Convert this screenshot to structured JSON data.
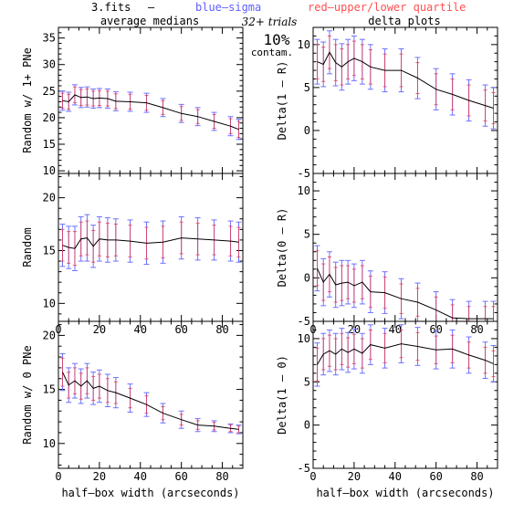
{
  "header": {
    "file_label": "3.fits",
    "dash": "–",
    "blue_label": "blue–sigma",
    "red_label": "red–upper/lower quartile",
    "blue_color": "#6060ff",
    "red_color": "#ff5050",
    "left_heading": "average medians",
    "trials": "32+ trials",
    "right_heading": "delta plots",
    "contam_pct": "10%",
    "contam_word": "contam."
  },
  "colors": {
    "line": "#000000",
    "sigma": "#7070ff",
    "quartile": "#e04060"
  },
  "chart_data": [
    {
      "type": "line",
      "ylabel": "Random w/ 1+ PNe",
      "xlim": [
        0,
        90
      ],
      "ylim": [
        9.5,
        37
      ],
      "xticks": [
        0,
        20,
        40,
        60,
        80
      ],
      "yticks": [
        10,
        15,
        20,
        25,
        30,
        35
      ],
      "show_xticklabels": false,
      "x": [
        2,
        5,
        8,
        11,
        14,
        17,
        20,
        24,
        28,
        35,
        43,
        51,
        60,
        68,
        76,
        84,
        88
      ],
      "y": [
        23.2,
        23.0,
        24.3,
        23.8,
        23.9,
        23.6,
        23.7,
        23.6,
        23.1,
        23.0,
        22.8,
        21.9,
        20.8,
        20.2,
        19.3,
        18.4,
        17.8
      ],
      "sigma": [
        1.8,
        1.8,
        1.9,
        1.9,
        1.9,
        1.8,
        1.8,
        1.8,
        1.8,
        1.8,
        1.8,
        1.7,
        1.7,
        1.7,
        1.7,
        1.8,
        1.9
      ],
      "quartile": [
        1.4,
        1.4,
        1.5,
        1.5,
        1.5,
        1.4,
        1.4,
        1.4,
        1.4,
        1.4,
        1.4,
        1.3,
        1.3,
        1.3,
        1.3,
        1.4,
        1.5
      ]
    },
    {
      "type": "line",
      "ylabel": "Random",
      "xlim": [
        0,
        90
      ],
      "ylim": [
        8.3,
        22.3
      ],
      "xticks": [
        0,
        20,
        40,
        60,
        80
      ],
      "yticks": [
        10,
        15,
        20
      ],
      "show_xticklabels": true,
      "x": [
        2,
        5,
        8,
        11,
        14,
        17,
        20,
        24,
        28,
        35,
        43,
        51,
        60,
        68,
        76,
        84,
        88
      ],
      "y": [
        15.5,
        15.3,
        15.2,
        16.1,
        16.2,
        15.4,
        16.1,
        16.0,
        16.0,
        15.9,
        15.7,
        15.8,
        16.2,
        16.1,
        16.0,
        15.9,
        15.8
      ],
      "sigma": [
        2.0,
        2.0,
        2.1,
        2.1,
        2.2,
        2.0,
        2.1,
        2.1,
        2.0,
        2.0,
        2.0,
        2.0,
        2.0,
        2.0,
        1.9,
        1.9,
        1.9
      ],
      "quartile": [
        1.5,
        1.5,
        1.6,
        1.6,
        1.6,
        1.5,
        1.6,
        1.6,
        1.5,
        1.5,
        1.5,
        1.5,
        1.5,
        1.5,
        1.4,
        1.4,
        1.4
      ]
    },
    {
      "type": "line",
      "ylabel": "Random w/ 0 PNe",
      "xlim": [
        0,
        90
      ],
      "ylim": [
        7.7,
        21.3
      ],
      "xticks": [
        0,
        20,
        40,
        60,
        80
      ],
      "yticks": [
        10,
        15,
        20
      ],
      "show_xticklabels": true,
      "xlabel": "half–box width (arcseconds)",
      "x": [
        2,
        5,
        8,
        11,
        14,
        17,
        20,
        24,
        28,
        35,
        43,
        51,
        60,
        68,
        76,
        84,
        88
      ],
      "y": [
        16.6,
        15.4,
        15.8,
        15.3,
        15.8,
        15.1,
        15.3,
        14.9,
        14.7,
        14.2,
        13.6,
        12.8,
        12.2,
        11.7,
        11.6,
        11.4,
        11.3
      ],
      "sigma": [
        1.7,
        1.6,
        1.6,
        1.6,
        1.6,
        1.5,
        1.5,
        1.5,
        1.4,
        1.3,
        1.1,
        0.9,
        0.8,
        0.6,
        0.5,
        0.4,
        0.4
      ],
      "quartile": [
        1.3,
        1.2,
        1.2,
        1.2,
        1.2,
        1.1,
        1.1,
        1.1,
        1.0,
        0.9,
        0.8,
        0.6,
        0.5,
        0.4,
        0.35,
        0.3,
        0.3
      ]
    },
    {
      "type": "line",
      "ylabel": "Delta(1 – R)",
      "xlim": [
        0,
        90
      ],
      "ylim": [
        -5,
        12
      ],
      "xticks": [
        0,
        20,
        40,
        60,
        80
      ],
      "yticks": [
        -5,
        0,
        5,
        10
      ],
      "show_xticklabels": false,
      "x": [
        2,
        5,
        8,
        11,
        14,
        17,
        20,
        24,
        28,
        35,
        43,
        51,
        60,
        68,
        76,
        84,
        88
      ],
      "y": [
        8.0,
        7.7,
        9.1,
        7.9,
        7.4,
        8.0,
        8.4,
        8.0,
        7.4,
        7.0,
        7.0,
        6.1,
        4.8,
        4.2,
        3.5,
        2.9,
        2.6
      ],
      "sigma": [
        2.6,
        2.6,
        2.5,
        2.7,
        2.7,
        2.6,
        2.6,
        2.6,
        2.6,
        2.5,
        2.5,
        2.4,
        2.4,
        2.4,
        2.4,
        2.4,
        2.4
      ],
      "quartile": [
        2.0,
        2.0,
        1.9,
        2.1,
        2.1,
        2.0,
        2.0,
        2.0,
        2.0,
        1.9,
        1.9,
        1.8,
        1.8,
        1.8,
        1.8,
        1.8,
        1.8
      ]
    },
    {
      "type": "line",
      "ylabel": "Delta(0 – R)",
      "xlim": [
        0,
        90
      ],
      "ylim": [
        -5,
        12
      ],
      "xticks": [
        0,
        20,
        40,
        60,
        80
      ],
      "yticks": [
        -5,
        0,
        5,
        10
      ],
      "show_xticklabels": true,
      "x": [
        2,
        5,
        8,
        11,
        14,
        17,
        20,
        24,
        28,
        35,
        43,
        51,
        60,
        68,
        76,
        84,
        88
      ],
      "y": [
        1.1,
        -0.5,
        0.4,
        -0.8,
        -0.6,
        -0.5,
        -0.9,
        -0.5,
        -1.6,
        -1.7,
        -2.4,
        -2.8,
        -3.7,
        -4.6,
        -4.7,
        -4.7,
        -4.7
      ],
      "sigma": [
        2.6,
        2.7,
        2.6,
        2.6,
        2.6,
        2.5,
        2.5,
        2.5,
        2.4,
        2.4,
        2.3,
        2.2,
        2.1,
        2.1,
        2.0,
        2.0,
        2.0
      ],
      "quartile": [
        2.0,
        2.1,
        2.0,
        2.0,
        2.0,
        1.9,
        1.9,
        1.9,
        1.8,
        1.8,
        1.7,
        1.6,
        1.5,
        1.5,
        1.4,
        1.4,
        1.4
      ]
    },
    {
      "type": "line",
      "ylabel": "Delta(1 – 0)",
      "xlim": [
        0,
        90
      ],
      "ylim": [
        -5,
        12
      ],
      "xticks": [
        0,
        20,
        40,
        60,
        80
      ],
      "yticks": [
        -5,
        0,
        5,
        10
      ],
      "show_xticklabels": true,
      "xlabel": "half–box width (arcseconds)",
      "x": [
        2,
        5,
        8,
        11,
        14,
        17,
        20,
        24,
        28,
        35,
        43,
        51,
        60,
        68,
        76,
        84,
        88
      ],
      "y": [
        7.0,
        8.2,
        8.6,
        8.2,
        8.8,
        8.4,
        8.8,
        8.3,
        9.3,
        8.9,
        9.4,
        9.1,
        8.7,
        8.8,
        8.1,
        7.5,
        7.1
      ],
      "sigma": [
        2.5,
        2.4,
        2.4,
        2.4,
        2.4,
        2.3,
        2.3,
        2.3,
        2.3,
        2.3,
        2.2,
        2.2,
        2.2,
        2.2,
        2.1,
        2.1,
        2.1
      ],
      "quartile": [
        1.9,
        1.8,
        1.8,
        1.8,
        1.8,
        1.7,
        1.7,
        1.7,
        1.7,
        1.7,
        1.6,
        1.6,
        1.6,
        1.6,
        1.5,
        1.5,
        1.5
      ]
    }
  ]
}
